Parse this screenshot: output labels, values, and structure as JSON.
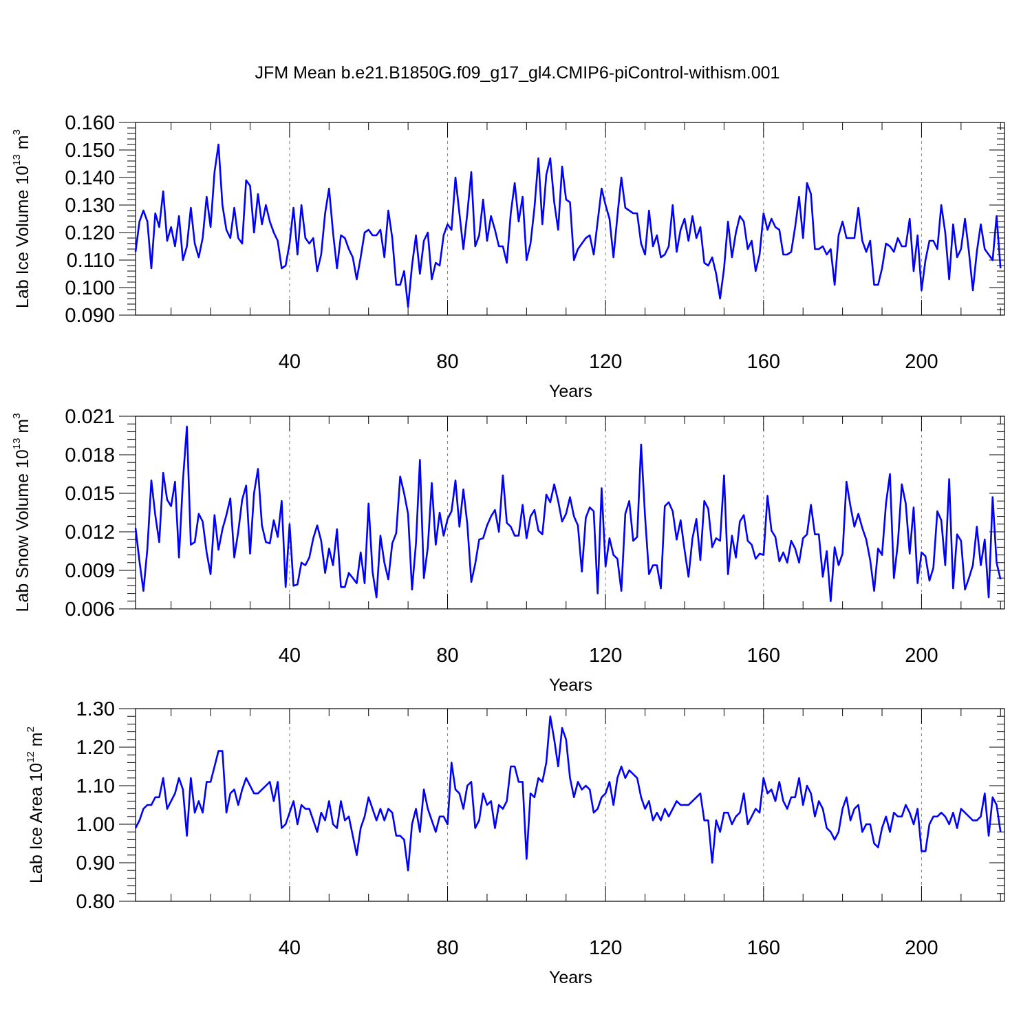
{
  "title": "JFM Mean b.e21.B1850G.f09_g17_gl4.CMIP6-piControl-withism.001",
  "colors": {
    "series": "#0000ff",
    "axis": "#000000",
    "grid": "#808080"
  },
  "chart_data": [
    {
      "type": "line",
      "xlabel": "Years",
      "ylabel": {
        "text": "Lab Ice Volume 10",
        "exp": "13",
        "unit": " m",
        "unit_exp": "3"
      },
      "xlim": [
        1,
        221
      ],
      "ylim": [
        0.09,
        0.16
      ],
      "xticks": [
        40,
        80,
        120,
        160,
        200
      ],
      "yticks": [
        "0.090",
        "0.100",
        "0.110",
        "0.120",
        "0.130",
        "0.140",
        "0.150",
        "0.160"
      ],
      "grid": "vertical dashed at major x ticks",
      "series": [
        {
          "values": [
            0.113,
            0.124,
            0.128,
            0.124,
            0.107,
            0.127,
            0.122,
            0.135,
            0.117,
            0.122,
            0.115,
            0.126,
            0.11,
            0.115,
            0.129,
            0.116,
            0.111,
            0.118,
            0.133,
            0.122,
            0.142,
            0.152,
            0.13,
            0.121,
            0.118,
            0.129,
            0.118,
            0.116,
            0.139,
            0.137,
            0.12,
            0.134,
            0.123,
            0.13,
            0.124,
            0.12,
            0.117,
            0.107,
            0.108,
            0.116,
            0.129,
            0.112,
            0.13,
            0.118,
            0.116,
            0.118,
            0.106,
            0.112,
            0.127,
            0.136,
            0.12,
            0.107,
            0.119,
            0.118,
            0.114,
            0.111,
            0.103,
            0.111,
            0.12,
            0.121,
            0.119,
            0.119,
            0.121,
            0.111,
            0.128,
            0.118,
            0.101,
            0.101,
            0.106,
            0.093,
            0.108,
            0.119,
            0.105,
            0.117,
            0.12,
            0.103,
            0.109,
            0.108,
            0.119,
            0.123,
            0.121,
            0.14,
            0.127,
            0.114,
            0.127,
            0.142,
            0.115,
            0.119,
            0.132,
            0.117,
            0.126,
            0.121,
            0.115,
            0.115,
            0.109,
            0.127,
            0.138,
            0.124,
            0.133,
            0.11,
            0.116,
            0.129,
            0.147,
            0.123,
            0.141,
            0.147,
            0.131,
            0.121,
            0.144,
            0.132,
            0.131,
            0.11,
            0.114,
            0.116,
            0.118,
            0.119,
            0.112,
            0.124,
            0.136,
            0.13,
            0.125,
            0.111,
            0.126,
            0.14,
            0.129,
            0.128,
            0.127,
            0.127,
            0.116,
            0.112,
            0.128,
            0.115,
            0.119,
            0.111,
            0.112,
            0.115,
            0.13,
            0.113,
            0.121,
            0.125,
            0.117,
            0.126,
            0.118,
            0.122,
            0.109,
            0.108,
            0.111,
            0.105,
            0.096,
            0.107,
            0.124,
            0.111,
            0.12,
            0.126,
            0.124,
            0.114,
            0.117,
            0.106,
            0.112,
            0.127,
            0.121,
            0.125,
            0.122,
            0.121,
            0.112,
            0.112,
            0.113,
            0.122,
            0.133,
            0.118,
            0.138,
            0.134,
            0.114,
            0.114,
            0.115,
            0.112,
            0.114,
            0.101,
            0.119,
            0.124,
            0.118,
            0.118,
            0.118,
            0.129,
            0.117,
            0.113,
            0.117,
            0.101,
            0.101,
            0.107,
            0.116,
            0.115,
            0.113,
            0.118,
            0.115,
            0.115,
            0.125,
            0.106,
            0.119,
            0.099,
            0.11,
            0.117,
            0.117,
            0.114,
            0.13,
            0.12,
            0.103,
            0.123,
            0.111,
            0.114,
            0.125,
            0.113,
            0.099,
            0.113,
            0.123,
            0.114,
            0.112,
            0.11,
            0.126,
            0.107
          ]
        }
      ]
    },
    {
      "type": "line",
      "xlabel": "Years",
      "ylabel": {
        "text": "Lab Snow Volume 10",
        "exp": "13",
        "unit": " m",
        "unit_exp": "3"
      },
      "xlim": [
        1,
        221
      ],
      "ylim": [
        0.006,
        0.021
      ],
      "xticks": [
        40,
        80,
        120,
        160,
        200
      ],
      "yticks": [
        "0.006",
        "0.009",
        "0.012",
        "0.015",
        "0.018",
        "0.021"
      ],
      "grid": "vertical dashed at major x ticks",
      "series": [
        {
          "values": [
            0.0123,
            0.0097,
            0.0074,
            0.0107,
            0.016,
            0.0133,
            0.0112,
            0.0166,
            0.0145,
            0.014,
            0.0159,
            0.01,
            0.016,
            0.0202,
            0.011,
            0.0112,
            0.0134,
            0.0128,
            0.0104,
            0.0087,
            0.0133,
            0.0106,
            0.0122,
            0.0133,
            0.0146,
            0.01,
            0.012,
            0.0145,
            0.0156,
            0.0103,
            0.015,
            0.0169,
            0.0125,
            0.0112,
            0.0111,
            0.0129,
            0.0116,
            0.0144,
            0.0077,
            0.0126,
            0.0078,
            0.0079,
            0.0096,
            0.0094,
            0.01,
            0.0115,
            0.0125,
            0.0113,
            0.0088,
            0.0107,
            0.0094,
            0.0122,
            0.0077,
            0.0077,
            0.0088,
            0.0084,
            0.008,
            0.0104,
            0.008,
            0.0142,
            0.0089,
            0.0069,
            0.0117,
            0.0096,
            0.0083,
            0.0111,
            0.0119,
            0.0163,
            0.015,
            0.0134,
            0.0075,
            0.0111,
            0.0176,
            0.0084,
            0.0108,
            0.0158,
            0.011,
            0.0135,
            0.0117,
            0.013,
            0.0136,
            0.016,
            0.0124,
            0.0153,
            0.0126,
            0.0081,
            0.0095,
            0.0114,
            0.0115,
            0.0125,
            0.0132,
            0.0137,
            0.012,
            0.0164,
            0.0127,
            0.0124,
            0.0117,
            0.0117,
            0.0141,
            0.0115,
            0.0132,
            0.0137,
            0.0121,
            0.0118,
            0.0149,
            0.0143,
            0.0157,
            0.0144,
            0.0128,
            0.0134,
            0.0147,
            0.0132,
            0.0125,
            0.0089,
            0.0131,
            0.0139,
            0.0136,
            0.0072,
            0.0154,
            0.0093,
            0.0115,
            0.0102,
            0.0099,
            0.0074,
            0.0134,
            0.0144,
            0.0113,
            0.0116,
            0.0188,
            0.0132,
            0.0087,
            0.0094,
            0.0094,
            0.0076,
            0.014,
            0.0143,
            0.0136,
            0.0114,
            0.0129,
            0.0106,
            0.0085,
            0.0115,
            0.013,
            0.0098,
            0.0144,
            0.0138,
            0.0108,
            0.0115,
            0.0113,
            0.0164,
            0.0087,
            0.0117,
            0.01,
            0.0128,
            0.0133,
            0.0113,
            0.011,
            0.0099,
            0.0103,
            0.0102,
            0.0148,
            0.0121,
            0.0116,
            0.0097,
            0.0104,
            0.0096,
            0.0113,
            0.0107,
            0.0096,
            0.0115,
            0.0118,
            0.0141,
            0.0118,
            0.0118,
            0.0085,
            0.0105,
            0.0066,
            0.0108,
            0.0094,
            0.0103,
            0.0159,
            0.014,
            0.0124,
            0.0134,
            0.0123,
            0.0114,
            0.0098,
            0.0074,
            0.0107,
            0.0102,
            0.0142,
            0.0165,
            0.0084,
            0.0111,
            0.0157,
            0.0142,
            0.0103,
            0.0139,
            0.008,
            0.0104,
            0.0101,
            0.0082,
            0.0092,
            0.0136,
            0.0129,
            0.0094,
            0.0161,
            0.0076,
            0.0118,
            0.0113,
            0.0075,
            0.0084,
            0.0094,
            0.0124,
            0.0094,
            0.0114,
            0.0069,
            0.0147,
            0.0096,
            0.0083
          ]
        }
      ]
    },
    {
      "type": "line",
      "xlabel": "Years",
      "ylabel": {
        "text": "Lab Ice Area 10",
        "exp": "12",
        "unit": " m",
        "unit_exp": "2"
      },
      "xlim": [
        1,
        221
      ],
      "ylim": [
        0.8,
        1.3
      ],
      "xticks": [
        40,
        80,
        120,
        160,
        200
      ],
      "yticks": [
        "0.80",
        "0.90",
        "1.00",
        "1.10",
        "1.20",
        "1.30"
      ],
      "grid": "vertical dashed at major x ticks",
      "series": [
        {
          "values": [
            0.99,
            1.01,
            1.04,
            1.05,
            1.05,
            1.07,
            1.07,
            1.12,
            1.04,
            1.06,
            1.08,
            1.12,
            1.09,
            0.97,
            1.12,
            1.03,
            1.06,
            1.03,
            1.11,
            1.11,
            1.15,
            1.19,
            1.19,
            1.03,
            1.08,
            1.09,
            1.05,
            1.09,
            1.12,
            1.1,
            1.08,
            1.08,
            1.09,
            1.1,
            1.11,
            1.06,
            1.11,
            0.99,
            1.0,
            1.03,
            1.06,
            1.0,
            1.05,
            1.04,
            1.04,
            1.01,
            0.98,
            1.03,
            1.01,
            1.06,
            1.0,
            0.99,
            1.06,
            1.01,
            1.02,
            0.97,
            0.92,
            0.99,
            1.02,
            1.07,
            1.04,
            1.01,
            1.04,
            1.01,
            1.04,
            1.03,
            0.97,
            0.97,
            0.96,
            0.88,
            1.0,
            1.04,
            0.98,
            1.09,
            1.04,
            1.01,
            0.98,
            1.02,
            1.02,
            1.0,
            1.16,
            1.09,
            1.08,
            1.04,
            1.1,
            1.11,
            0.99,
            1.01,
            1.08,
            1.05,
            1.06,
            0.99,
            1.05,
            1.04,
            1.06,
            1.15,
            1.15,
            1.11,
            1.11,
            0.91,
            1.08,
            1.07,
            1.12,
            1.11,
            1.16,
            1.28,
            1.22,
            1.15,
            1.25,
            1.22,
            1.12,
            1.07,
            1.11,
            1.09,
            1.1,
            1.09,
            1.03,
            1.04,
            1.07,
            1.08,
            1.11,
            1.05,
            1.12,
            1.15,
            1.12,
            1.14,
            1.13,
            1.12,
            1.07,
            1.04,
            1.06,
            1.01,
            1.03,
            1.01,
            1.04,
            1.02,
            1.04,
            1.06,
            1.05,
            1.05,
            1.05,
            1.06,
            1.07,
            1.08,
            1.01,
            1.01,
            0.9,
            1.01,
            0.98,
            1.03,
            1.03,
            1.0,
            1.02,
            1.03,
            1.08,
            1.0,
            1.02,
            1.04,
            1.03,
            1.12,
            1.08,
            1.09,
            1.06,
            1.11,
            1.06,
            1.04,
            1.07,
            1.07,
            1.12,
            1.05,
            1.1,
            1.08,
            1.02,
            1.06,
            1.04,
            0.99,
            0.98,
            0.96,
            0.98,
            1.04,
            1.07,
            1.01,
            1.04,
            1.05,
            0.98,
            1.0,
            1.0,
            0.95,
            0.94,
            0.99,
            1.02,
            0.98,
            1.03,
            1.02,
            1.02,
            1.05,
            1.03,
            1.0,
            1.04,
            0.93,
            0.93,
            1.0,
            1.02,
            1.02,
            1.03,
            1.02,
            1.0,
            1.03,
            0.99,
            1.04,
            1.03,
            1.02,
            1.01,
            1.01,
            1.02,
            1.08,
            0.97,
            1.07,
            1.05,
            0.98
          ]
        }
      ]
    }
  ]
}
